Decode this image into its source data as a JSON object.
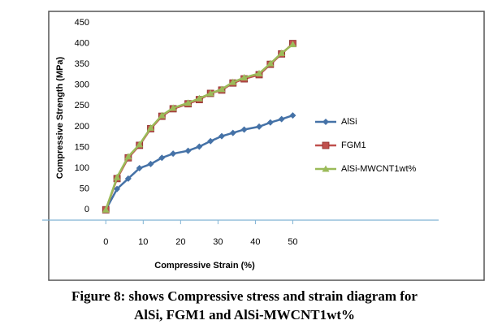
{
  "chart_data": {
    "type": "line",
    "x_label": "Compressive Strain (%)",
    "y_label": "Compressive Strength (MPa)",
    "x": [
      0,
      3,
      6,
      9,
      12,
      15,
      18,
      22,
      25,
      28,
      31,
      34,
      37,
      41,
      44,
      47,
      50
    ],
    "series": [
      {
        "name": "AlSi",
        "color": "#4572a7",
        "marker": "diamond",
        "values": [
          0,
          50,
          75,
          100,
          110,
          125,
          135,
          142,
          152,
          165,
          177,
          185,
          193,
          200,
          210,
          218,
          227
        ]
      },
      {
        "name": "FGM1",
        "color": "#c0504d",
        "marker": "square",
        "values": [
          0,
          75,
          125,
          155,
          195,
          225,
          243,
          255,
          265,
          280,
          288,
          305,
          315,
          325,
          350,
          375,
          400
        ]
      },
      {
        "name": "AlSi-MWCNT1wt%",
        "color": "#9bbb59",
        "marker": "triangle",
        "values": [
          0,
          78,
          128,
          157,
          197,
          227,
          245,
          257,
          268,
          280,
          290,
          307,
          318,
          328,
          352,
          377,
          398
        ]
      }
    ],
    "xlim": [
      -17,
      89
    ],
    "xticks": [
      0,
      10,
      20,
      30,
      40,
      50
    ],
    "ylim": [
      -25,
      450
    ],
    "yticks": [
      0,
      50,
      100,
      150,
      200,
      250,
      300,
      350,
      400,
      450
    ]
  },
  "caption": [
    "Figure 8: shows Compressive stress and strain diagram for",
    "AlSi, FGM1 and AlSi-MWCNT1wt%"
  ]
}
